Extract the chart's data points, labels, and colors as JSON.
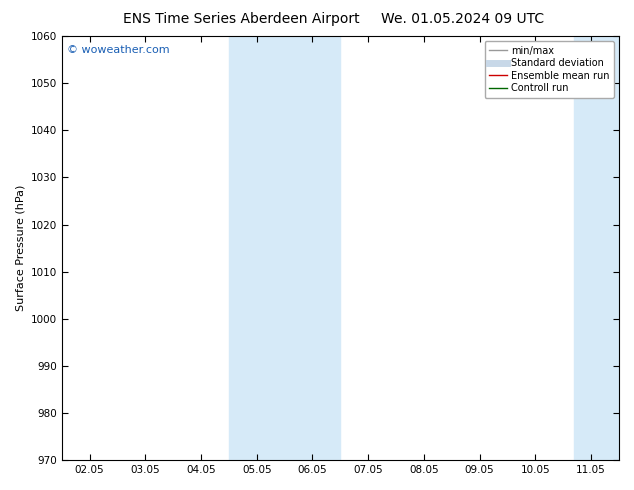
{
  "title_left": "ENS Time Series Aberdeen Airport",
  "title_right": "We. 01.05.2024 09 UTC",
  "ylabel": "Surface Pressure (hPa)",
  "ylim": [
    970,
    1060
  ],
  "yticks": [
    970,
    980,
    990,
    1000,
    1010,
    1020,
    1030,
    1040,
    1050,
    1060
  ],
  "xtick_labels": [
    "02.05",
    "03.05",
    "04.05",
    "05.05",
    "06.05",
    "07.05",
    "08.05",
    "09.05",
    "10.05",
    "11.05"
  ],
  "xmin": 1,
  "xmax": 10,
  "shaded_bands": [
    {
      "xmin": 3.5,
      "xmax": 5.5
    },
    {
      "xmin": 9.7,
      "xmax": 10.5
    }
  ],
  "band_color": "#d6eaf8",
  "background_color": "#ffffff",
  "watermark": "© woweather.com",
  "watermark_color": "#1a5fb4",
  "legend_items": [
    {
      "label": "min/max",
      "color": "#999999",
      "lw": 1.0
    },
    {
      "label": "Standard deviation",
      "color": "#c8d8e8",
      "lw": 5
    },
    {
      "label": "Ensemble mean run",
      "color": "#cc0000",
      "lw": 1.0
    },
    {
      "label": "Controll run",
      "color": "#006600",
      "lw": 1.0
    }
  ],
  "title_fontsize": 10,
  "tick_fontsize": 7.5,
  "ylabel_fontsize": 8,
  "watermark_fontsize": 8,
  "figsize": [
    6.34,
    4.9
  ],
  "dpi": 100
}
